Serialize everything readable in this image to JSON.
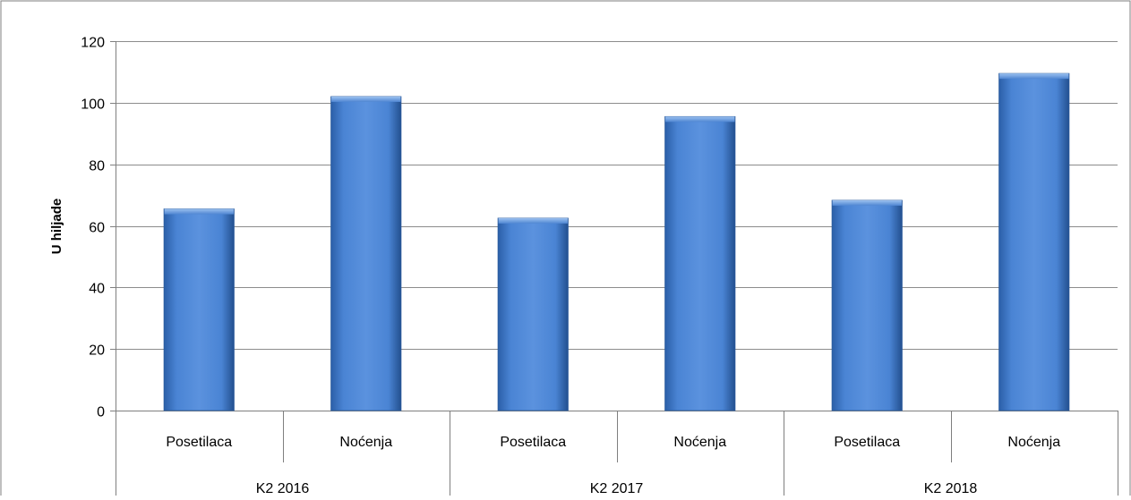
{
  "chart_data": {
    "type": "bar",
    "title": "",
    "xlabel": "",
    "ylabel": "U hiljade",
    "ylim": [
      0,
      120
    ],
    "yticks": [
      0,
      20,
      40,
      60,
      80,
      100,
      120
    ],
    "grid": true,
    "legend": "none",
    "groups": [
      {
        "label": "K2 2016",
        "bars": [
          {
            "label": "Posetilaca",
            "value": 65.5
          },
          {
            "label": "Noćenja",
            "value": 102
          }
        ]
      },
      {
        "label": "K2 2017",
        "bars": [
          {
            "label": "Posetilaca",
            "value": 62.5
          },
          {
            "label": "Noćenja",
            "value": 95.5
          }
        ]
      },
      {
        "label": "K2 2018",
        "bars": [
          {
            "label": "Posetilaca",
            "value": 68.3
          },
          {
            "label": "Noćenja",
            "value": 109.5
          }
        ]
      }
    ],
    "colors": {
      "bar": "#3f78c8",
      "bar_light": "#6f9fe0",
      "bar_dark": "#234f8f",
      "grid": "#8c8c8c",
      "axis": "#7f7f7f",
      "text": "#000000",
      "frame": "#7f7f7f"
    }
  }
}
